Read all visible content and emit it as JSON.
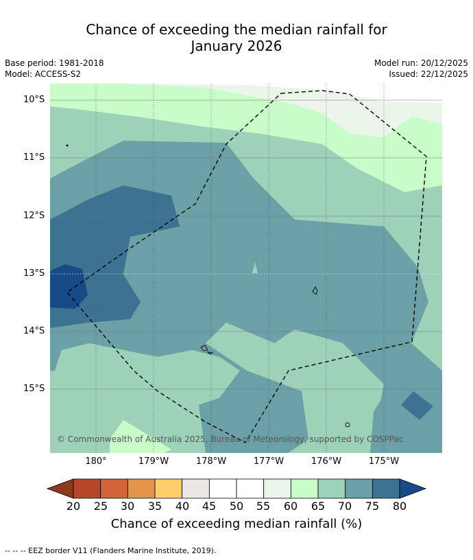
{
  "title_line1": "Chance of exceeding the median rainfall for",
  "title_line2": "January 2026",
  "base_period": "Base period: 1981-2018",
  "model": "Model: ACCESS-S2",
  "model_run": "Model run: 20/12/2025",
  "issued": "Issued: 22/12/2025",
  "lat_labels": [
    "10°S",
    "11°S",
    "12°S",
    "13°S",
    "14°S",
    "15°S"
  ],
  "lon_labels": [
    "180°",
    "179°W",
    "178°W",
    "177°W",
    "176°W",
    "175°W"
  ],
  "copyright": "© Commonwealth of Australia 2025, Bureau of Meteorology, supported by COSPPac",
  "colorbar": {
    "ticks": [
      "20",
      "25",
      "30",
      "35",
      "40",
      "45",
      "50",
      "55",
      "60",
      "65",
      "70",
      "75",
      "80"
    ],
    "label": "Chance of exceeding median rainfall (%)",
    "colors": [
      "#8b3a1f",
      "#b5472a",
      "#d0653a",
      "#e3954d",
      "#fccf6b",
      "#ebe8e3",
      "#ffffff",
      "#ffffff",
      "#ebf5ea",
      "#c8fcc8",
      "#9dd1b8",
      "#6ba1a6",
      "#3e7293",
      "#174b88"
    ]
  },
  "footer": "--  --  -- EEZ border V11 (Flanders Marine Institute, 2019)."
}
